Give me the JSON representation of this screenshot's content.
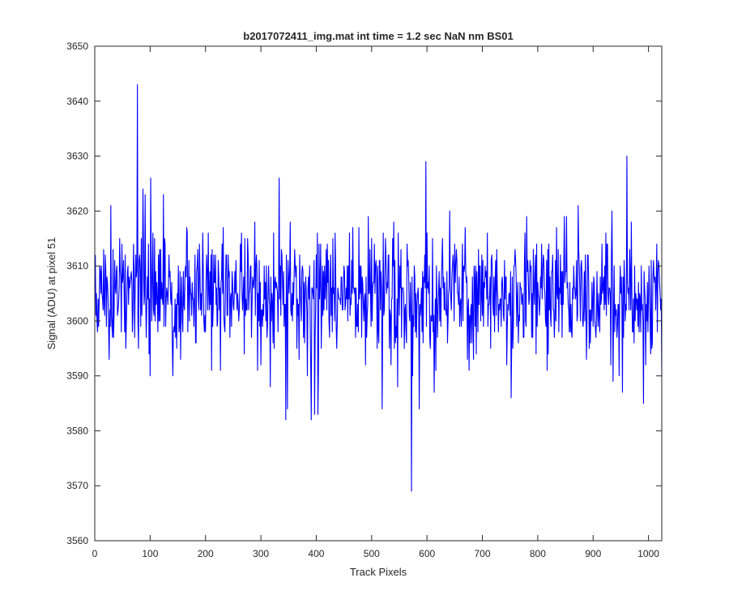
{
  "chart_data": {
    "type": "line",
    "title": "b2017072411_img.mat int time = 1.2 sec  NaN nm BS01",
    "xlabel": "Track Pixels",
    "ylabel": "Signal (ADU) at pixel 51",
    "xlim": [
      0,
      1024
    ],
    "ylim": [
      3560,
      3650
    ],
    "xticks": [
      0,
      100,
      200,
      300,
      400,
      500,
      600,
      700,
      800,
      900,
      1000
    ],
    "yticks": [
      3560,
      3570,
      3580,
      3590,
      3600,
      3610,
      3620,
      3630,
      3640,
      3650
    ],
    "grid": false,
    "legend": "none",
    "series": [
      {
        "color": "#0000ff",
        "noise": {
          "n_points": 1024,
          "mean": 3605,
          "std": 5.5,
          "seed": 51
        },
        "anchors": [
          [
            25,
            3593
          ],
          [
            28,
            3621
          ],
          [
            55,
            3595
          ],
          [
            76,
            3643
          ],
          [
            78,
            3595
          ],
          [
            86,
            3624
          ],
          [
            90,
            3623
          ],
          [
            99,
            3590
          ],
          [
            100,
            3626
          ],
          [
            123,
            3623
          ],
          [
            140,
            3590
          ],
          [
            154,
            3593
          ],
          [
            210,
            3591
          ],
          [
            264,
            3616
          ],
          [
            293,
            3591
          ],
          [
            316,
            3588
          ],
          [
            332,
            3626
          ],
          [
            344,
            3582
          ],
          [
            347,
            3584
          ],
          [
            368,
            3593
          ],
          [
            383,
            3590
          ],
          [
            390,
            3582
          ],
          [
            396,
            3583
          ],
          [
            402,
            3583
          ],
          [
            436,
            3595
          ],
          [
            518,
            3584
          ],
          [
            571,
            3569
          ],
          [
            573,
            3590
          ],
          [
            585,
            3584
          ],
          [
            597,
            3629
          ],
          [
            612,
            3587
          ],
          [
            649,
            3614
          ],
          [
            675,
            3591
          ],
          [
            751,
            3586
          ],
          [
            779,
            3619
          ],
          [
            876,
            3600
          ],
          [
            935,
            3589
          ],
          [
            946,
            3590
          ],
          [
            952,
            3587
          ],
          [
            960,
            3630
          ],
          [
            990,
            3585
          ],
          [
            1015,
            3598
          ],
          [
            1023,
            3590
          ]
        ]
      }
    ]
  }
}
